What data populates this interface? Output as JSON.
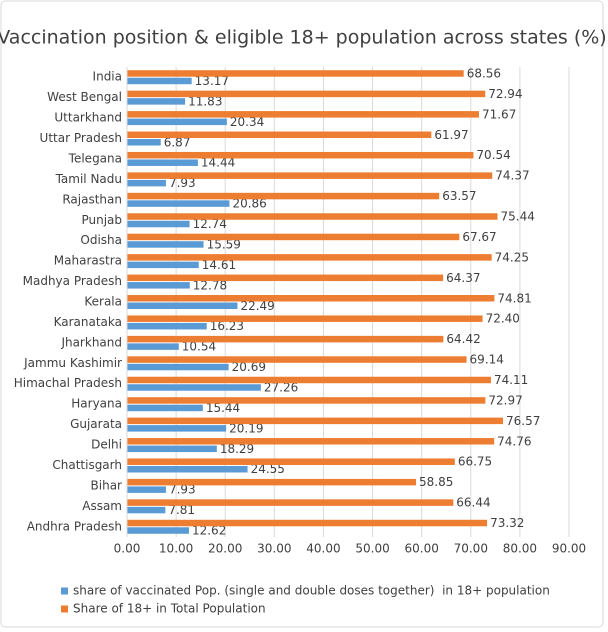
{
  "chart_data": {
    "type": "hbar",
    "title": "Vaccination position & eligible 18+ population across states (%)",
    "categories": [
      "India",
      "West Bengal",
      "Uttarkhand",
      "Uttar Pradesh",
      "Telegana",
      "Tamil Nadu",
      "Rajasthan",
      "Punjab",
      "Odisha",
      "Maharastra",
      "Madhya Pradesh",
      "Kerala",
      "Karanataka",
      "Jharkhand",
      "Jammu Kashimir",
      "Himachal Pradesh",
      "Haryana",
      "Gujarata",
      "Delhi",
      "Chattisgarh",
      "Bihar",
      "Assam",
      "Andhra Pradesh"
    ],
    "series": [
      {
        "name": "share of vaccinated Pop. (single and double doses together)  in 18+ population",
        "color": "#5b9bd5",
        "values": [
          13.17,
          11.83,
          20.34,
          6.87,
          14.44,
          7.93,
          20.86,
          12.74,
          15.59,
          14.61,
          12.78,
          22.49,
          16.23,
          10.54,
          20.69,
          27.26,
          15.44,
          20.19,
          18.29,
          24.55,
          7.93,
          7.81,
          12.62
        ],
        "value_labels": [
          "13.17",
          "11.83",
          "20.34",
          "6.87",
          "14.44",
          "7.93",
          "20.86",
          "12.74",
          "15.59",
          "14.61",
          "12.78",
          "22.49",
          "16.23",
          "10.54",
          "20.69",
          "27.26",
          "15.44",
          "20.19",
          "18.29",
          "24.55",
          "7.93",
          "7.81",
          "12.62"
        ]
      },
      {
        "name": "Share of 18+ in Total Population",
        "color": "#ed7d31",
        "values": [
          68.56,
          72.94,
          71.67,
          61.97,
          70.54,
          74.37,
          63.57,
          75.44,
          67.67,
          74.25,
          64.37,
          74.81,
          72.4,
          64.42,
          69.14,
          74.11,
          72.97,
          76.57,
          74.76,
          66.75,
          58.85,
          66.44,
          73.32
        ],
        "value_labels": [
          "68.56",
          "72.94",
          "71.67",
          "61.97",
          "70.54",
          "74.37",
          "63.57",
          "75.44",
          "67.67",
          "74.25",
          "64.37",
          "74.81",
          "72.40",
          "64.42",
          "69.14",
          "74.11",
          "72.97",
          "76.57",
          "74.76",
          "66.75",
          "58.85",
          "66.44",
          "73.32"
        ]
      }
    ],
    "xlim": [
      0,
      90
    ],
    "xticks": [
      {
        "value": 0,
        "label": "0.00"
      },
      {
        "value": 10,
        "label": "10.00"
      },
      {
        "value": 20,
        "label": "20.00"
      },
      {
        "value": 30,
        "label": "30.00"
      },
      {
        "value": 40,
        "label": "40.00"
      },
      {
        "value": 50,
        "label": "50.00"
      },
      {
        "value": 60,
        "label": "60.00"
      },
      {
        "value": 70,
        "label": "70.00"
      },
      {
        "value": 80,
        "label": "80.00"
      },
      {
        "value": 90,
        "label": "90.00"
      }
    ],
    "grid": true,
    "legend": "bottom"
  }
}
